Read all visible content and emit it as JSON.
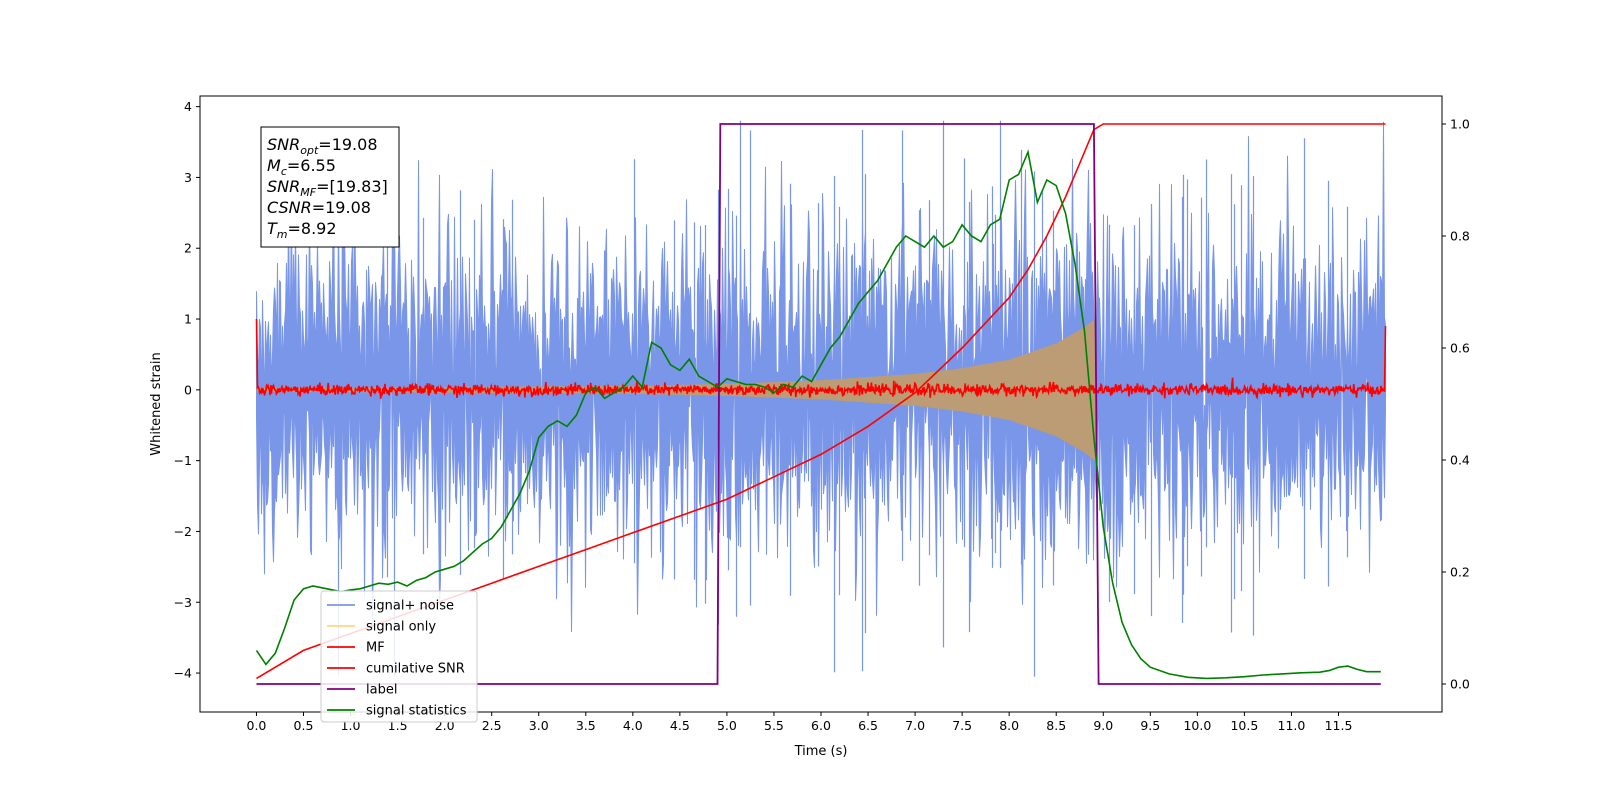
{
  "chart_data": {
    "type": "line",
    "title": "",
    "xlabel": "Time (s)",
    "ylabel": "Whitened strain",
    "y2label": "",
    "xlim": [
      -0.6,
      12.6
    ],
    "ylim": [
      -4.55,
      4.15
    ],
    "y2lim": [
      -0.05,
      1.05
    ],
    "x_ticks": [
      0.0,
      0.5,
      1.0,
      1.5,
      2.0,
      2.5,
      3.0,
      3.5,
      4.0,
      4.5,
      5.0,
      5.5,
      6.0,
      6.5,
      7.0,
      7.5,
      8.0,
      8.5,
      9.0,
      9.5,
      10.0,
      10.5,
      11.0,
      11.5
    ],
    "x_tick_labels": [
      "0.0",
      "0.5",
      "1.0",
      "1.5",
      "2.0",
      "2.5",
      "3.0",
      "3.5",
      "4.0",
      "4.5",
      "5.0",
      "5.5",
      "6.0",
      "6.5",
      "7.0",
      "7.5",
      "8.0",
      "8.5",
      "9.0",
      "9.5",
      "10.0",
      "10.5",
      "11.0",
      "11.5"
    ],
    "y_ticks": [
      -4,
      -3,
      -2,
      -1,
      0,
      1,
      2,
      3,
      4
    ],
    "y_tick_labels": [
      "−4",
      "−3",
      "−2",
      "−1",
      "0",
      "1",
      "2",
      "3",
      "4"
    ],
    "y2_ticks": [
      0.0,
      0.2,
      0.4,
      0.6,
      0.8,
      1.0
    ],
    "y2_tick_labels": [
      "0.0",
      "0.2",
      "0.4",
      "0.6",
      "0.8",
      "1.0"
    ],
    "grid": false,
    "legend_position": "bottom-left",
    "signal_end_time": 8.92,
    "series": [
      {
        "name": "signal+ noise",
        "color": "#7a96e8",
        "axis": "left",
        "kind": "noise",
        "t_range": [
          0.0,
          12.0
        ],
        "sigma": 1.0,
        "envelope_max": [
          3.4,
          3.8
        ],
        "envelope_min": [
          -3.1,
          -4.05
        ]
      },
      {
        "name": "signal only",
        "color": "#ffd580",
        "fill_color": "#bc9c74",
        "axis": "left",
        "kind": "chirp",
        "t_range": [
          0.0,
          8.92
        ],
        "amplitude_envelope": {
          "t": [
            0.0,
            4.0,
            5.0,
            6.0,
            7.0,
            7.5,
            8.0,
            8.5,
            8.8,
            8.92
          ],
          "a": [
            0.02,
            0.05,
            0.08,
            0.13,
            0.22,
            0.3,
            0.42,
            0.65,
            0.88,
            1.0
          ]
        }
      },
      {
        "name": "MF",
        "color": "#ff0000",
        "axis": "left",
        "kind": "noise",
        "t_range": [
          0.0,
          12.0
        ],
        "sigma": 0.04,
        "edge_values": [
          1.0,
          0.9
        ]
      },
      {
        "name": "cumilative SNR",
        "color": "#ff0000",
        "axis": "right",
        "x": [
          0.0,
          0.5,
          1.0,
          1.5,
          2.0,
          2.5,
          3.0,
          3.5,
          4.0,
          4.5,
          5.0,
          5.5,
          6.0,
          6.5,
          7.0,
          7.5,
          8.0,
          8.2,
          8.4,
          8.6,
          8.8,
          8.9,
          9.0,
          12.0
        ],
        "values": [
          0.01,
          0.06,
          0.09,
          0.12,
          0.15,
          0.18,
          0.21,
          0.24,
          0.27,
          0.3,
          0.33,
          0.37,
          0.41,
          0.46,
          0.52,
          0.6,
          0.69,
          0.74,
          0.8,
          0.87,
          0.95,
          0.99,
          1.0,
          1.0
        ]
      },
      {
        "name": "label",
        "color": "#800080",
        "axis": "right",
        "x": [
          0.0,
          4.9,
          4.93,
          8.9,
          8.95,
          11.95
        ],
        "values": [
          0.0,
          0.0,
          1.0,
          1.0,
          0.0,
          0.0
        ]
      },
      {
        "name": "signal statistics",
        "color": "#008000",
        "axis": "right",
        "x": [
          0.0,
          0.1,
          0.2,
          0.3,
          0.4,
          0.5,
          0.6,
          0.75,
          0.9,
          1.0,
          1.1,
          1.2,
          1.3,
          1.4,
          1.5,
          1.6,
          1.7,
          1.8,
          1.9,
          2.0,
          2.1,
          2.2,
          2.3,
          2.4,
          2.5,
          2.6,
          2.7,
          2.8,
          2.9,
          3.0,
          3.1,
          3.2,
          3.3,
          3.4,
          3.5,
          3.6,
          3.7,
          3.8,
          3.9,
          4.0,
          4.1,
          4.2,
          4.3,
          4.4,
          4.5,
          4.6,
          4.7,
          4.8,
          4.9,
          5.0,
          5.1,
          5.2,
          5.3,
          5.4,
          5.5,
          5.6,
          5.7,
          5.8,
          5.9,
          6.0,
          6.1,
          6.2,
          6.3,
          6.4,
          6.5,
          6.6,
          6.7,
          6.8,
          6.9,
          7.0,
          7.1,
          7.2,
          7.3,
          7.4,
          7.5,
          7.6,
          7.7,
          7.8,
          7.9,
          8.0,
          8.1,
          8.2,
          8.3,
          8.4,
          8.5,
          8.6,
          8.7,
          8.8,
          8.9,
          9.0,
          9.1,
          9.2,
          9.3,
          9.4,
          9.5,
          9.7,
          9.9,
          10.1,
          10.3,
          10.5,
          10.7,
          10.9,
          11.1,
          11.3,
          11.4,
          11.5,
          11.6,
          11.7,
          11.8,
          11.95
        ],
        "values": [
          0.06,
          0.035,
          0.055,
          0.1,
          0.15,
          0.17,
          0.175,
          0.17,
          0.165,
          0.168,
          0.17,
          0.175,
          0.18,
          0.178,
          0.182,
          0.175,
          0.185,
          0.19,
          0.2,
          0.205,
          0.21,
          0.22,
          0.235,
          0.25,
          0.26,
          0.28,
          0.31,
          0.34,
          0.38,
          0.44,
          0.46,
          0.47,
          0.46,
          0.48,
          0.52,
          0.53,
          0.51,
          0.52,
          0.53,
          0.55,
          0.53,
          0.61,
          0.6,
          0.57,
          0.56,
          0.58,
          0.55,
          0.54,
          0.53,
          0.545,
          0.54,
          0.535,
          0.535,
          0.53,
          0.52,
          0.535,
          0.53,
          0.55,
          0.54,
          0.57,
          0.6,
          0.62,
          0.65,
          0.68,
          0.7,
          0.72,
          0.75,
          0.78,
          0.8,
          0.79,
          0.78,
          0.8,
          0.78,
          0.79,
          0.82,
          0.8,
          0.79,
          0.82,
          0.83,
          0.9,
          0.91,
          0.95,
          0.86,
          0.9,
          0.89,
          0.84,
          0.75,
          0.63,
          0.44,
          0.28,
          0.18,
          0.11,
          0.07,
          0.045,
          0.03,
          0.018,
          0.012,
          0.01,
          0.011,
          0.013,
          0.016,
          0.018,
          0.02,
          0.021,
          0.024,
          0.03,
          0.032,
          0.026,
          0.022,
          0.022
        ]
      }
    ],
    "annotation": [
      {
        "base": "SNR",
        "sub": "opt",
        "value": "=19.08"
      },
      {
        "base": "M",
        "sub": "c",
        "value": "=6.55"
      },
      {
        "base": "SNR",
        "sub": "MF",
        "value": "=[19.83]"
      },
      {
        "base": "CSNR",
        "sub": "",
        "value": "=19.08"
      },
      {
        "base": "T",
        "sub": "m",
        "value": "=8.92"
      }
    ]
  }
}
